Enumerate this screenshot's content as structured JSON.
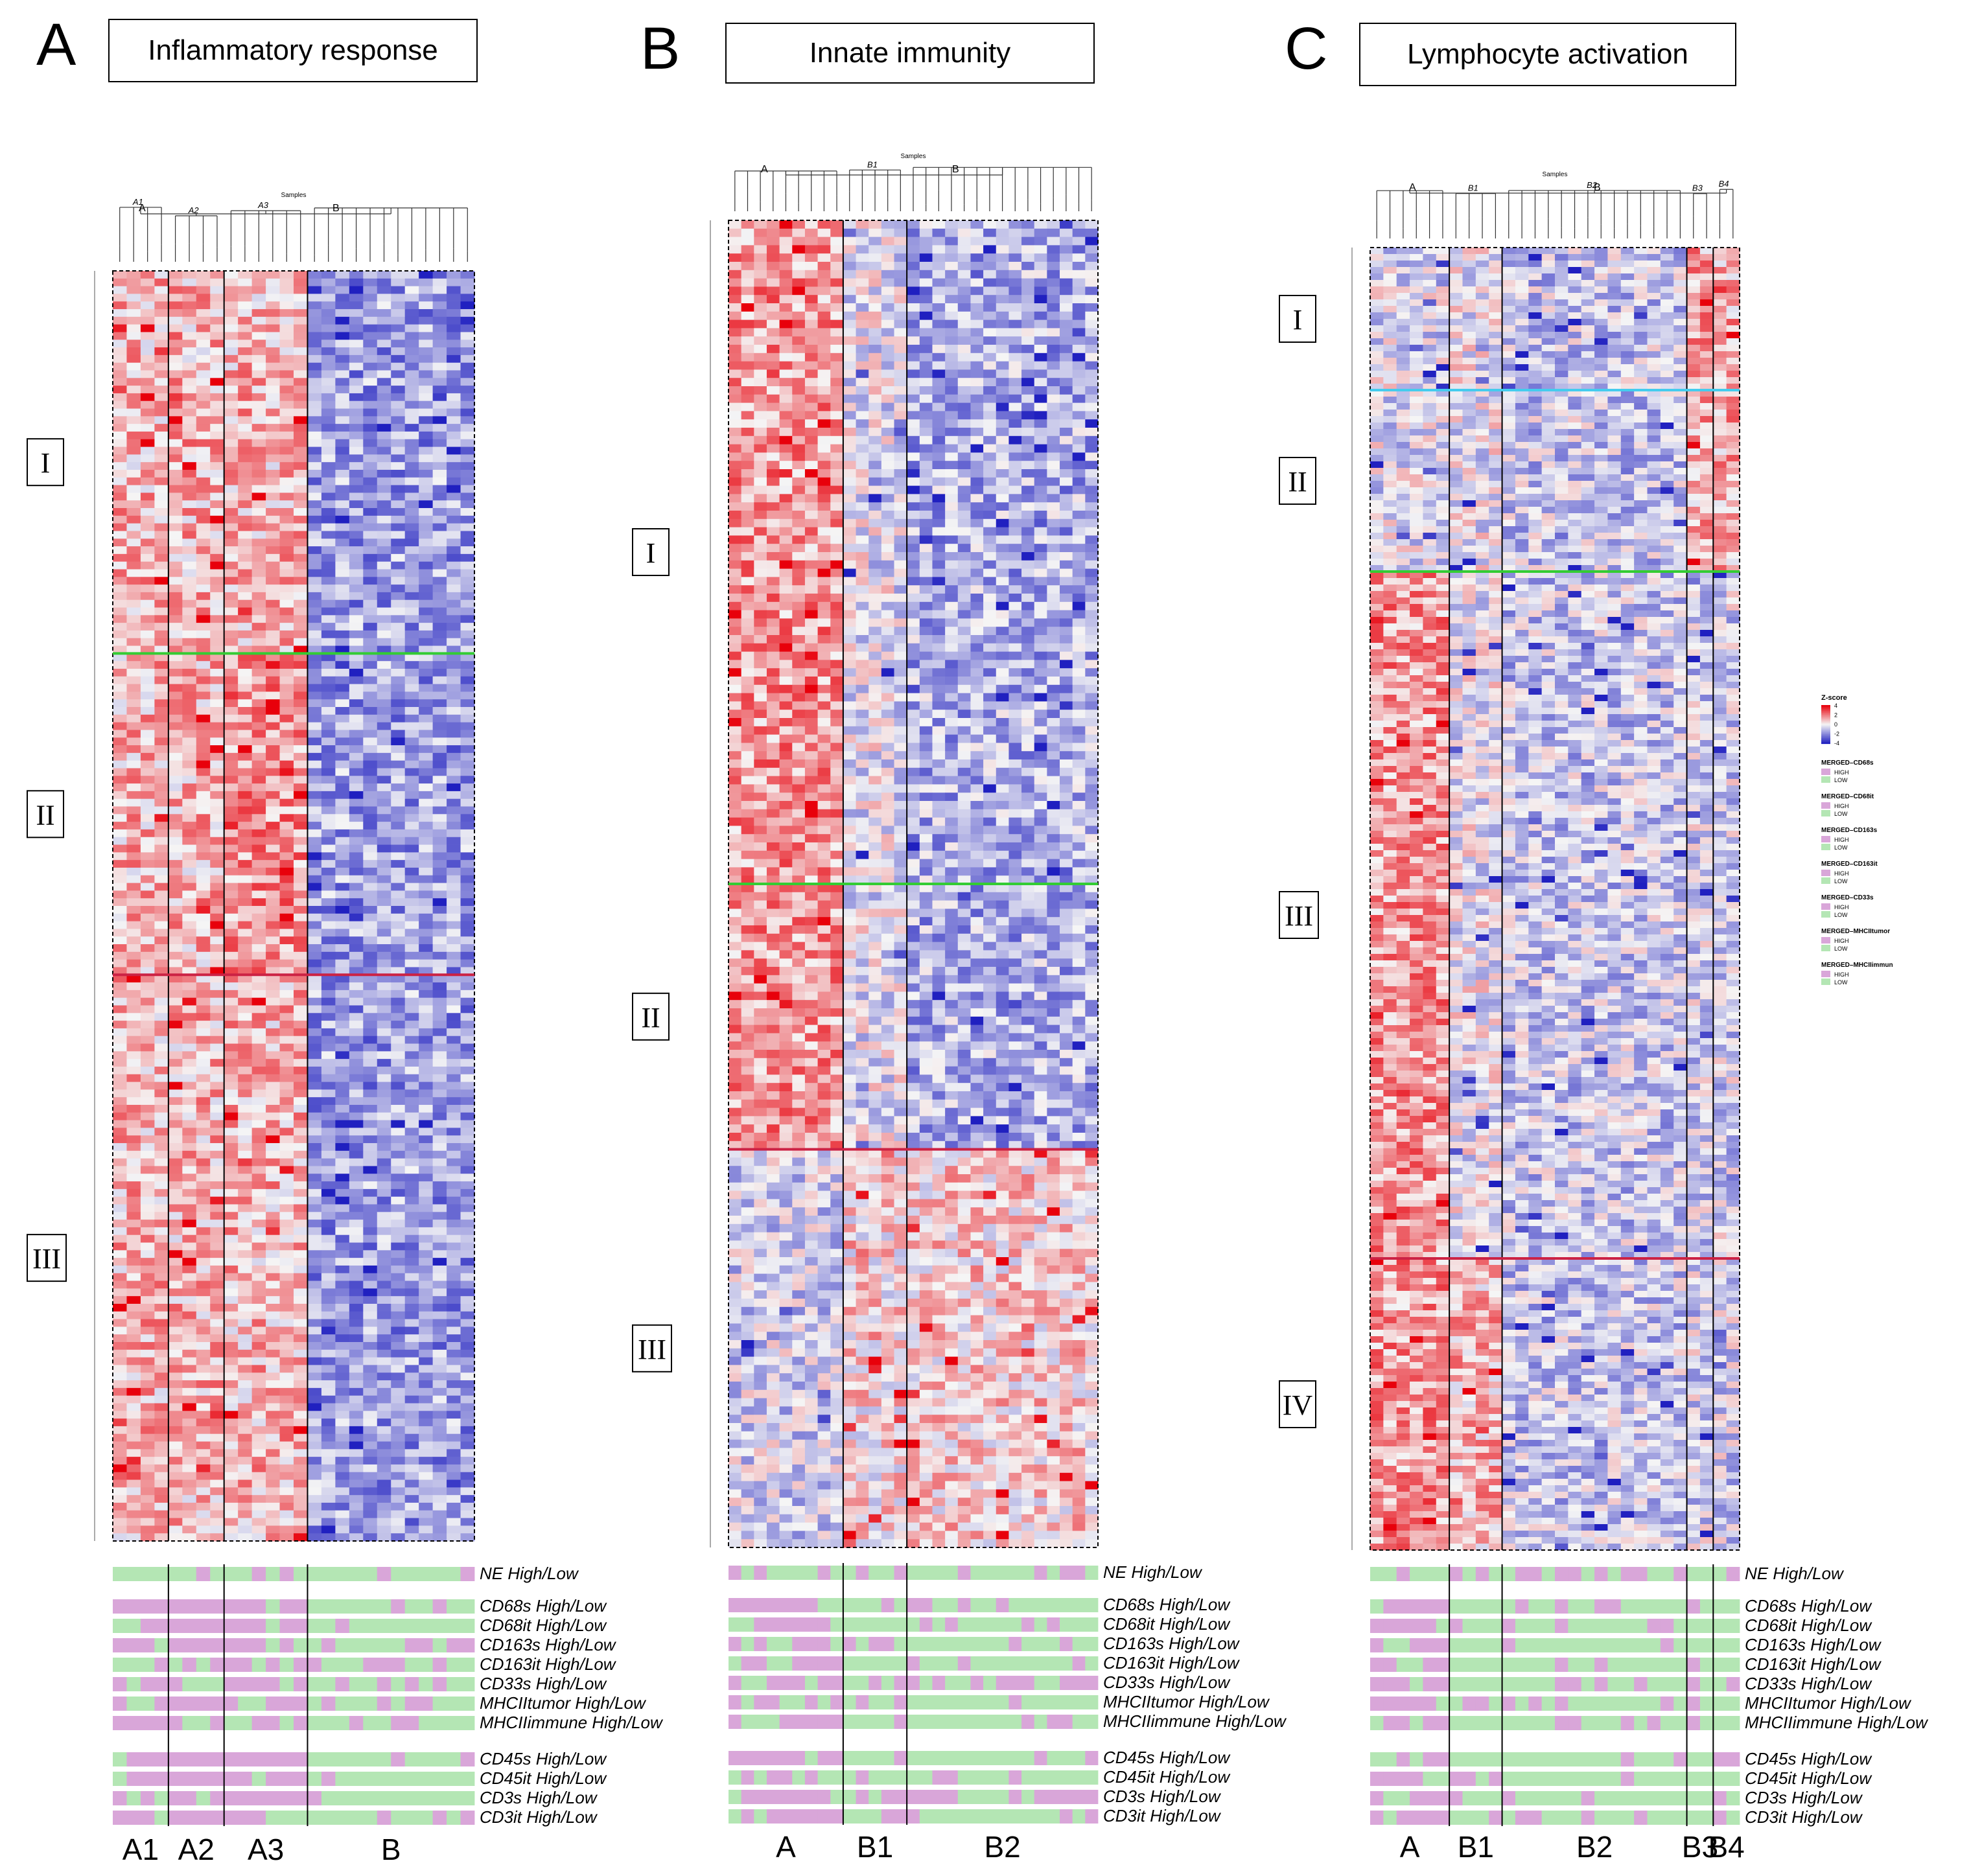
{
  "figure": {
    "panels": [
      {
        "letter": "A",
        "title": "Inflammatory response",
        "dendrogram": {
          "title": "Samples",
          "top_clusters": [
            "A",
            "B"
          ],
          "sub_clusters": [
            "A1",
            "A2",
            "A3"
          ]
        },
        "clusters": [
          "A1",
          "A2",
          "A3",
          "B"
        ],
        "cluster_columns": [
          4,
          4,
          6,
          12
        ],
        "gene_groups": [
          {
            "label": "I",
            "rows": 50
          },
          {
            "label": "II",
            "rows": 42
          },
          {
            "label": "III",
            "rows": 74
          }
        ],
        "separator_colors": [
          "#33cc33",
          "#cc2244"
        ]
      },
      {
        "letter": "B",
        "title": "Innate immunity",
        "dendrogram": {
          "title": "Samples",
          "top_clusters": [
            "A",
            "B"
          ],
          "sub_clusters": [
            "B1"
          ]
        },
        "clusters": [
          "A",
          "B1",
          "B2"
        ],
        "cluster_columns": [
          9,
          5,
          15
        ],
        "gene_groups": [
          {
            "label": "I",
            "rows": 80
          },
          {
            "label": "II",
            "rows": 32
          },
          {
            "label": "III",
            "rows": 48
          }
        ],
        "separator_colors": [
          "#33cc33",
          "#cc2244"
        ]
      },
      {
        "letter": "C",
        "title": "Lymphocyte activation",
        "dendrogram": {
          "title": "Samples",
          "top_clusters": [
            "A",
            "B"
          ],
          "sub_clusters": [
            "B1",
            "B2",
            "B3",
            "B4"
          ]
        },
        "clusters": [
          "A",
          "B1",
          "B2",
          "B3",
          "B4"
        ],
        "cluster_columns": [
          6,
          4,
          14,
          2,
          2
        ],
        "gene_groups": [
          {
            "label": "I",
            "rows": 22
          },
          {
            "label": "II",
            "rows": 28
          },
          {
            "label": "III",
            "rows": 106
          },
          {
            "label": "IV",
            "rows": 45
          }
        ],
        "separator_colors": [
          "#44ccee",
          "#33cc33",
          "#cc2244"
        ]
      }
    ],
    "annotation_tracks": {
      "group1": [
        "NE High/Low"
      ],
      "group2": [
        "CD68s High/Low",
        "CD68it High/Low",
        "CD163s High/Low",
        "CD163it High/Low",
        "CD33s High/Low",
        "MHCIItumor High/Low",
        "MHCIIimmune High/Low"
      ],
      "group3": [
        "CD45s High/Low",
        "CD45it High/Low",
        "CD3s High/Low",
        "CD3it High/Low"
      ]
    },
    "legend": {
      "title": "Z-score",
      "ticks": [
        "4",
        "2",
        "0",
        "-2",
        "-4"
      ],
      "entries": [
        {
          "name": "MERGED–CD68s",
          "levels": [
            "HIGH",
            "LOW"
          ]
        },
        {
          "name": "MERGED–CD68it",
          "levels": [
            "HIGH",
            "LOW"
          ]
        },
        {
          "name": "MERGED–CD163s",
          "levels": [
            "HIGH",
            "LOW"
          ]
        },
        {
          "name": "MERGED–CD163it",
          "levels": [
            "HIGH",
            "LOW"
          ]
        },
        {
          "name": "MERGED–CD33s",
          "levels": [
            "HIGH",
            "LOW"
          ]
        },
        {
          "name": "MERGED–MHCIItumor",
          "levels": [
            "HIGH",
            "LOW"
          ]
        },
        {
          "name": "MERGED–MHCIIimmun",
          "levels": [
            "HIGH",
            "LOW"
          ]
        }
      ]
    },
    "colors": {
      "high": "#d9a6d9",
      "low": "#b4e6b4",
      "zscore_high": "#e8000b",
      "zscore_mid": "#f5f5f5",
      "zscore_low": "#2020c0"
    }
  },
  "chart_data": [
    {
      "type": "heatmap",
      "title": "Inflammatory response",
      "panel": "A",
      "column_clusters": [
        "A1",
        "A2",
        "A3",
        "B"
      ],
      "row_groups": [
        "I",
        "II",
        "III"
      ],
      "value_range": [
        -4,
        4
      ],
      "pattern": "A clusters mostly positive z-scores, B cluster mostly negative"
    },
    {
      "type": "heatmap",
      "title": "Innate immunity",
      "panel": "B",
      "column_clusters": [
        "A",
        "B1",
        "B2"
      ],
      "row_groups": [
        "I",
        "II",
        "III"
      ],
      "value_range": [
        -4,
        4
      ],
      "pattern": "A cluster high in groups I-II; B2 elevated in group III"
    },
    {
      "type": "heatmap",
      "title": "Lymphocyte activation",
      "panel": "C",
      "column_clusters": [
        "A",
        "B1",
        "B2",
        "B3",
        "B4"
      ],
      "row_groups": [
        "I",
        "II",
        "III",
        "IV"
      ],
      "value_range": [
        -4,
        4
      ],
      "pattern": "A cluster high in groups III-IV; B3/B4 high in groups I-II"
    }
  ]
}
